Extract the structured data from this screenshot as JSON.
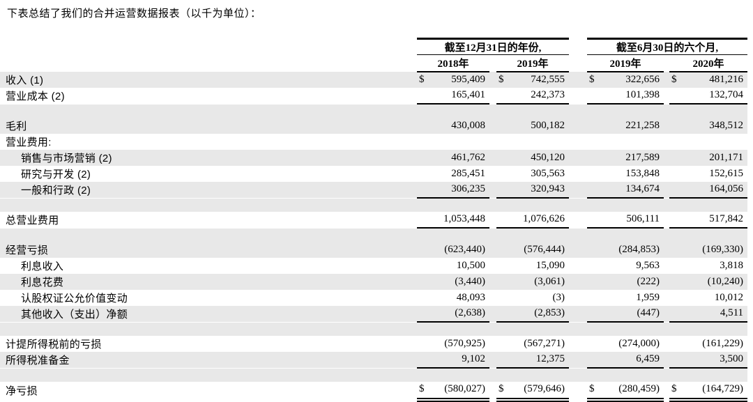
{
  "title": "下表总结了我们的合并运营数据报表（以千为单位）：",
  "table": {
    "currency_symbol": "$",
    "col_groups": [
      {
        "label": "截至12月31日的年份,",
        "years": [
          "2018年",
          "2019年"
        ]
      },
      {
        "label": "截至6月30日的六个月,",
        "years": [
          "2019年",
          "2020年"
        ]
      }
    ],
    "rows": [
      {
        "label": "收入 (1)",
        "indent": 0,
        "shade": true,
        "dollar": true,
        "values": [
          "595,409",
          "742,555",
          "322,656",
          "481,216"
        ]
      },
      {
        "label": "营业成本 (2)",
        "indent": 0,
        "shade": false,
        "underline": true,
        "values": [
          "165,401",
          "242,373",
          "101,398",
          "132,704"
        ]
      },
      {
        "type": "spacer",
        "shade": true
      },
      {
        "label": "毛利",
        "indent": 0,
        "shade": true,
        "values": [
          "430,008",
          "500,182",
          "221,258",
          "348,512"
        ]
      },
      {
        "label": "营业费用:",
        "indent": 0,
        "shade": false,
        "values": [
          "",
          "",
          "",
          ""
        ]
      },
      {
        "label": "销售与市场营销 (2)",
        "indent": 1,
        "shade": true,
        "values": [
          "461,762",
          "450,120",
          "217,589",
          "201,171"
        ]
      },
      {
        "label": "研究与开发 (2)",
        "indent": 1,
        "shade": false,
        "values": [
          "285,451",
          "305,563",
          "153,848",
          "152,615"
        ]
      },
      {
        "label": "一般和行政 (2)",
        "indent": 1,
        "shade": true,
        "underline": true,
        "values": [
          "306,235",
          "320,943",
          "134,674",
          "164,056"
        ]
      },
      {
        "type": "spacer",
        "shade": true
      },
      {
        "label": "总营业费用",
        "indent": 0,
        "shade": false,
        "underline": true,
        "values": [
          "1,053,448",
          "1,076,626",
          "506,111",
          "517,842"
        ]
      },
      {
        "type": "spacer",
        "shade": true
      },
      {
        "label": "经营亏损",
        "indent": 0,
        "shade": true,
        "values": [
          "(623,440)",
          "(576,444)",
          "(284,853)",
          "(169,330)"
        ]
      },
      {
        "label": "利息收入",
        "indent": 1,
        "shade": false,
        "values": [
          "10,500",
          "15,090",
          "9,563",
          "3,818"
        ]
      },
      {
        "label": "利息花费",
        "indent": 1,
        "shade": true,
        "values": [
          "(3,440)",
          "(3,061)",
          "(222)",
          "(10,240)"
        ]
      },
      {
        "label": "认股权证公允价值变动",
        "indent": 1,
        "shade": false,
        "values": [
          "48,093",
          "(3)",
          "1,959",
          "10,012"
        ]
      },
      {
        "label": "其他收入（支出）净额",
        "indent": 1,
        "shade": true,
        "underline": true,
        "values": [
          "(2,638)",
          "(2,853)",
          "(447)",
          "4,511"
        ]
      },
      {
        "type": "spacer",
        "shade": true
      },
      {
        "label": "计提所得税前的亏损",
        "indent": 0,
        "shade": false,
        "values": [
          "(570,925)",
          "(567,271)",
          "(274,000)",
          "(161,229)"
        ]
      },
      {
        "label": "所得税准备金",
        "indent": 0,
        "shade": true,
        "underline": true,
        "values": [
          "9,102",
          "12,375",
          "6,459",
          "3,500"
        ]
      },
      {
        "type": "spacer",
        "shade": true
      },
      {
        "label": "净亏损",
        "indent": 0,
        "shade": false,
        "dollar": true,
        "double_underline": true,
        "net_loss": true,
        "values": [
          "(580,027)",
          "(579,646)",
          "(280,459)",
          "(164,729)"
        ]
      }
    ]
  },
  "colors": {
    "row_band": "#e8e8e8",
    "rule": "#000000",
    "text": "#000000",
    "background": "#ffffff"
  }
}
